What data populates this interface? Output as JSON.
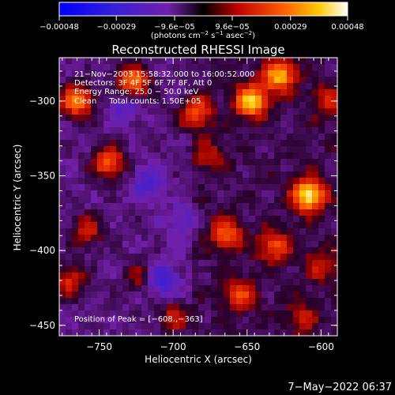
{
  "chart_data": {
    "type": "heatmap",
    "title": "Reconstructed RHESSI Image",
    "xlabel": "Heliocentric X (arcsec)",
    "ylabel": "Heliocentric Y (arcsec)",
    "xlim": [
      -777,
      -589
    ],
    "ylim": [
      -457,
      -271
    ],
    "x_ticks": [
      -750,
      -700,
      -650,
      -600
    ],
    "x_tick_labels": [
      "−750",
      "−700",
      "−650",
      "−600"
    ],
    "y_ticks": [
      -300,
      -350,
      -400,
      -450
    ],
    "y_tick_labels": [
      "−300",
      "−350",
      "−400",
      "−450"
    ],
    "colorbar": {
      "range": [
        -0.00048,
        0.00048
      ],
      "tick_values": [
        -0.00048,
        -0.00029,
        -9.6e-05,
        9.6e-05,
        0.00029,
        0.00048
      ],
      "tick_labels": [
        "−0.00048",
        "−0.00029",
        "−9.6e−05",
        "9.6e−05",
        "0.00029",
        "0.00048"
      ],
      "units_main": "(photons cm",
      "units_exp1": "−2",
      "units_mid1": " s",
      "units_exp2": "−1",
      "units_mid2": " asec",
      "units_exp3": "−2",
      "units_end": ")"
    },
    "annotations": [
      "21−Nov−2003 15:58:32.000 to 16:00:52.000",
      "Detectors: 3F 4F 5F 6F 7F 8F, Att 0",
      "Energy Range: 25.0 − 50.0 keV",
      "Clean     Total counts: 1.50E+05"
    ],
    "peak_label": "Position of Peak = [−608.,−363]",
    "peak": [
      -608,
      -363
    ],
    "hotspots": [
      {
        "x": -608,
        "y": -363,
        "value": 0.00048
      },
      {
        "x": -647,
        "y": -300,
        "value": 0.00042
      },
      {
        "x": -628,
        "y": -283,
        "value": 0.00038
      },
      {
        "x": -765,
        "y": -300,
        "value": 0.00036
      },
      {
        "x": -727,
        "y": -287,
        "value": 0.00033
      },
      {
        "x": -744,
        "y": -341,
        "value": 0.0003
      },
      {
        "x": -685,
        "y": -308,
        "value": 0.00027
      },
      {
        "x": -664,
        "y": -389,
        "value": 0.00026
      },
      {
        "x": -632,
        "y": -397,
        "value": 0.00024
      },
      {
        "x": -655,
        "y": -430,
        "value": 0.00022
      },
      {
        "x": -770,
        "y": -420,
        "value": 0.00021
      },
      {
        "x": -758,
        "y": -387,
        "value": 0.00019
      },
      {
        "x": -700,
        "y": -445,
        "value": 0.00018
      },
      {
        "x": -722,
        "y": -418,
        "value": 0.00015
      },
      {
        "x": -676,
        "y": -337,
        "value": 0.00014
      },
      {
        "x": -600,
        "y": -410,
        "value": 0.00016
      },
      {
        "x": -613,
        "y": -445,
        "value": 0.00014
      },
      {
        "x": -595,
        "y": -300,
        "value": 0.00017
      }
    ],
    "coldspots": [
      {
        "x": -708,
        "y": -420,
        "value": -0.00022
      },
      {
        "x": -717,
        "y": -355,
        "value": -0.00016
      },
      {
        "x": -733,
        "y": -305,
        "value": -0.00013
      },
      {
        "x": -693,
        "y": -380,
        "value": -0.00012
      }
    ]
  },
  "footer_timestamp": "7−May−2022 06:37"
}
